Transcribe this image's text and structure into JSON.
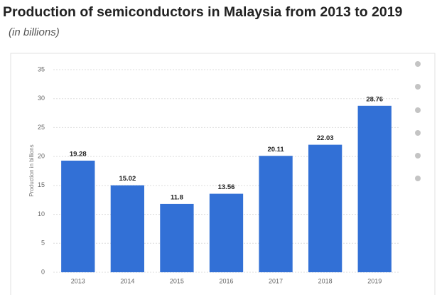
{
  "chart_data": {
    "type": "bar",
    "title": "Production of semiconductors in Malaysia from 2013 to 2019",
    "subtitle": "(in billions)",
    "y_label": "Production in billions",
    "categories": [
      "2013",
      "2014",
      "2015",
      "2016",
      "2017",
      "2018",
      "2019"
    ],
    "values": [
      19.28,
      15.02,
      11.8,
      13.56,
      20.11,
      22.03,
      28.76
    ],
    "color": "#3270d6",
    "ylim": [
      0,
      35
    ],
    "yticks": [
      0,
      5,
      10,
      15,
      20,
      25,
      30,
      35
    ],
    "grid": true
  }
}
